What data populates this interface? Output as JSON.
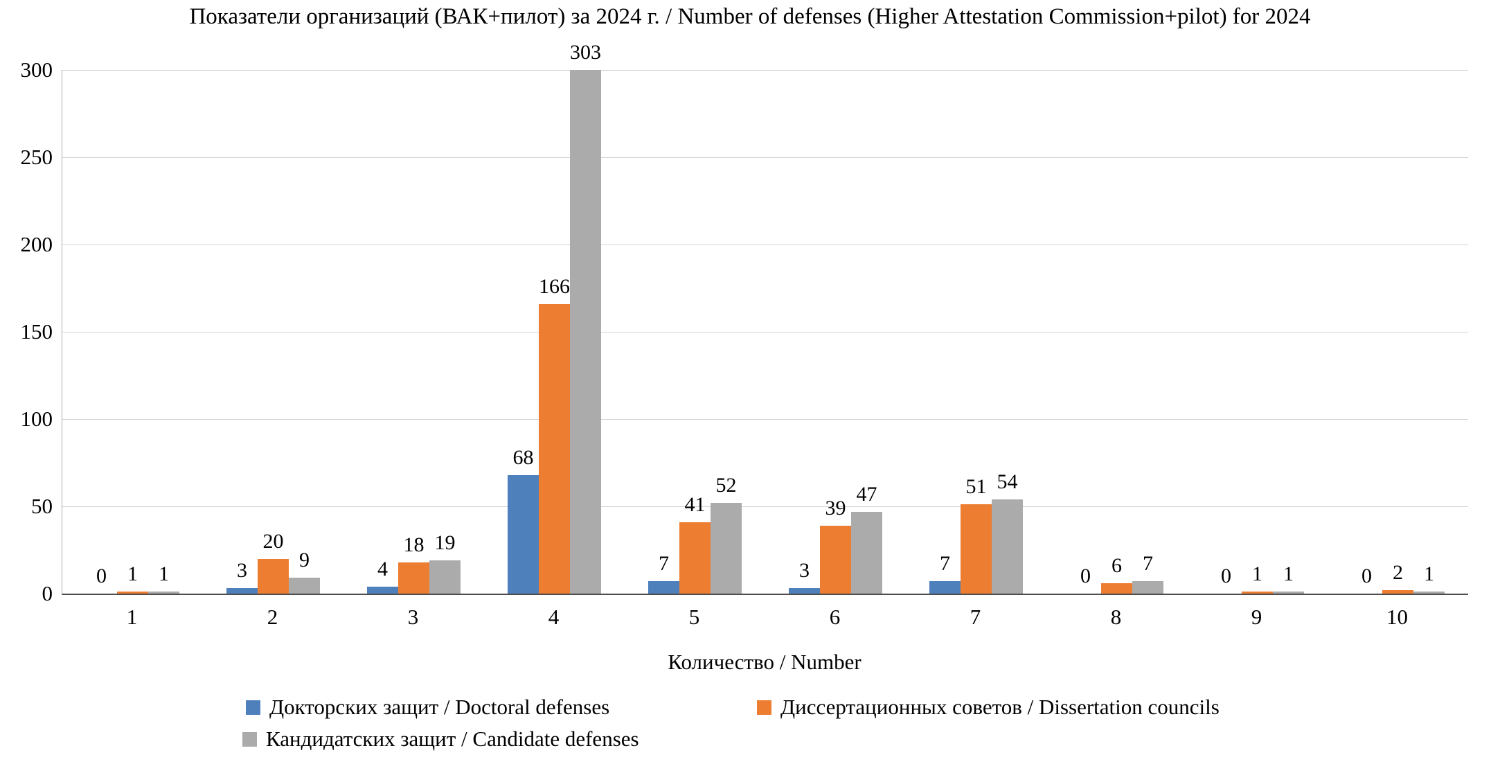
{
  "title": "Показатели организаций (ВАК+пилот) за 2024 г. / Number of defenses (Higher Attestation Commission+pilot) for 2024",
  "chart_data": {
    "type": "bar",
    "title": "Показатели организаций (ВАК+пилот) за 2024 г. / Number of defenses (Higher Attestation Commission+pilot) for 2024",
    "categories": [
      "1",
      "2",
      "3",
      "4",
      "5",
      "6",
      "7",
      "8",
      "9",
      "10"
    ],
    "series": [
      {
        "name": "Докторских защит / Doctoral defenses",
        "color": "#4E80BC",
        "values": [
          0,
          3,
          4,
          68,
          7,
          3,
          7,
          0,
          0,
          0
        ]
      },
      {
        "name": "Диссертационных советов / Dissertation councils",
        "color": "#ED7D31",
        "values": [
          1,
          20,
          18,
          166,
          41,
          39,
          51,
          6,
          1,
          2
        ]
      },
      {
        "name": "Кандидатских защит / Candidate defenses",
        "color": "#ABABAB",
        "values": [
          1,
          9,
          19,
          303,
          52,
          47,
          54,
          7,
          1,
          1
        ]
      }
    ],
    "xlabel": "Количество / Number",
    "ylabel": "",
    "ylim": [
      0,
      300
    ],
    "yticks": [
      0,
      50,
      100,
      150,
      200,
      250,
      300
    ],
    "grid": true,
    "data_labels": true,
    "legend_position": "bottom"
  }
}
